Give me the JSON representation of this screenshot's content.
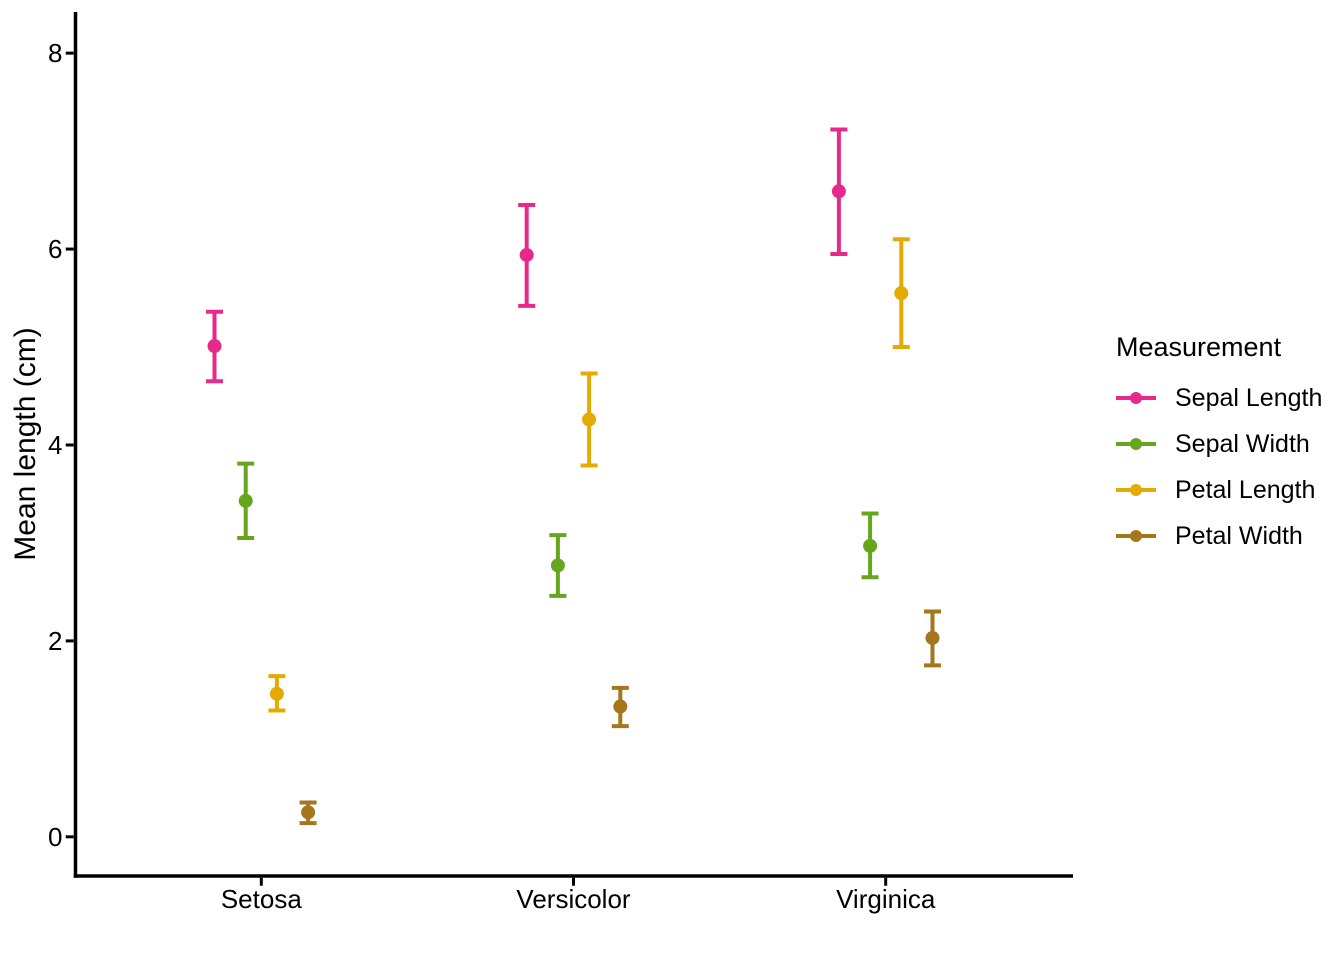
{
  "figure": {
    "background_color": "#FFFFFF",
    "text_color": "#000000",
    "axis_color": "#000000"
  },
  "chart_data": {
    "type": "pointrange",
    "title": "",
    "xlabel": "",
    "ylabel": "Mean length (cm)",
    "categories": [
      "Setosa",
      "Versicolor",
      "Virginica"
    ],
    "series": [
      {
        "name": "Sepal Length",
        "color": "#E7298A",
        "mean": [
          5.01,
          5.94,
          6.59
        ],
        "lower": [
          4.65,
          5.42,
          5.95
        ],
        "upper": [
          5.36,
          6.45,
          7.22
        ]
      },
      {
        "name": "Sepal Width",
        "color": "#66A61E",
        "mean": [
          3.43,
          2.77,
          2.97
        ],
        "lower": [
          3.05,
          2.46,
          2.65
        ],
        "upper": [
          3.81,
          3.08,
          3.3
        ]
      },
      {
        "name": "Petal Length",
        "color": "#E6AB02",
        "mean": [
          1.46,
          4.26,
          5.55
        ],
        "lower": [
          1.29,
          3.79,
          5.0
        ],
        "upper": [
          1.64,
          4.73,
          6.1
        ]
      },
      {
        "name": "Petal Width",
        "color": "#A6761D",
        "mean": [
          0.25,
          1.33,
          2.03
        ],
        "lower": [
          0.14,
          1.13,
          1.75
        ],
        "upper": [
          0.35,
          1.52,
          2.3
        ]
      }
    ],
    "y_ticks": [
      0,
      2,
      4,
      6,
      8
    ],
    "ylim": [
      -0.4,
      8.42
    ],
    "grid": false,
    "legend": {
      "title": "Measurement",
      "position": "right"
    }
  }
}
